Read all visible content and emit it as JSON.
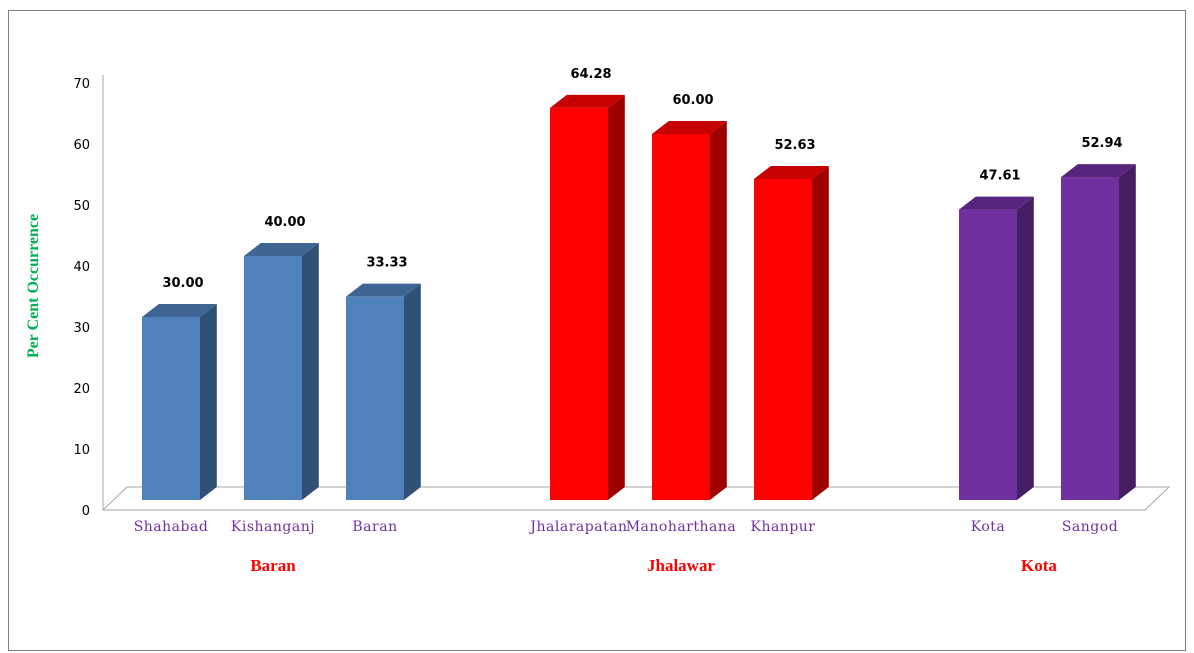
{
  "chart_data": {
    "type": "bar",
    "ylabel": "Per Cent Occurrence",
    "ylim": [
      0,
      70
    ],
    "yticks": [
      0,
      10,
      20,
      30,
      40,
      50,
      60,
      70
    ],
    "grid": false,
    "categories": [
      "Shahabad",
      "Kishanganj",
      "Baran",
      "Jhalarapatan",
      "Manoharthana",
      "Khanpur",
      "Kota",
      "Sangod"
    ],
    "values": [
      30.0,
      40.0,
      33.33,
      64.28,
      60.0,
      52.63,
      47.61,
      52.94
    ],
    "value_labels": [
      "30.00",
      "40.00",
      "33.33",
      "64.28",
      "60.00",
      "52.63",
      "47.61",
      "52.94"
    ],
    "groups": [
      {
        "name": "Baran",
        "color": "#4f81bd",
        "categories": [
          "Shahabad",
          "Kishanganj",
          "Baran"
        ]
      },
      {
        "name": "Jhalawar",
        "color": "#ff0000",
        "categories": [
          "Jhalarapatan",
          "Manoharthana",
          "Khanpur"
        ]
      },
      {
        "name": "Kota",
        "color": "#7030a0",
        "categories": [
          "Kota",
          "Sangod"
        ]
      }
    ]
  }
}
